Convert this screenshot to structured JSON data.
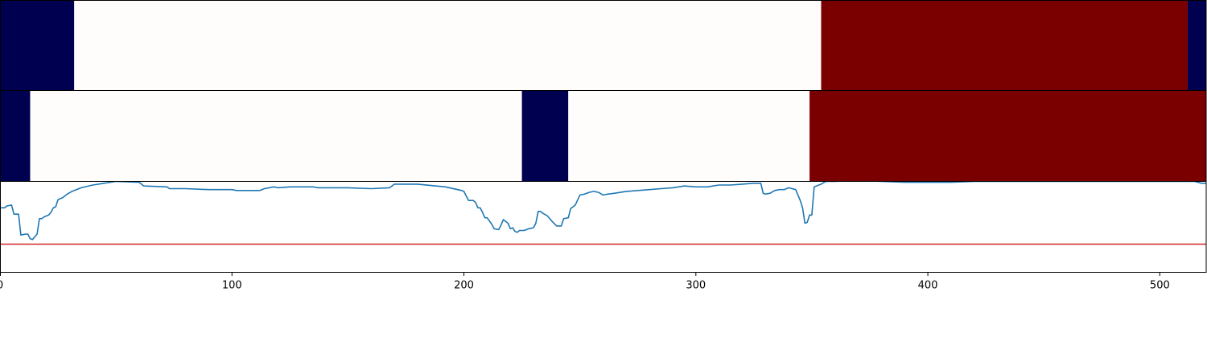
{
  "chart_data": [
    {
      "type": "heatmap",
      "panel": "top-band",
      "xlim": [
        0,
        520
      ],
      "segments": [
        {
          "start": 0,
          "end": 32,
          "color": "#000050"
        },
        {
          "start": 32,
          "end": 354,
          "color": "#fffcfc"
        },
        {
          "start": 354,
          "end": 512,
          "color": "#7a0000"
        },
        {
          "start": 512,
          "end": 520,
          "color": "#000050"
        }
      ]
    },
    {
      "type": "heatmap",
      "panel": "middle-band",
      "xlim": [
        0,
        520
      ],
      "segments": [
        {
          "start": 0,
          "end": 13,
          "color": "#000050"
        },
        {
          "start": 13,
          "end": 225,
          "color": "#fffcfc"
        },
        {
          "start": 225,
          "end": 245,
          "color": "#000050"
        },
        {
          "start": 245,
          "end": 349,
          "color": "#fffcfc"
        },
        {
          "start": 349,
          "end": 520,
          "color": "#7a0000"
        }
      ]
    },
    {
      "type": "line",
      "panel": "signal",
      "xlim": [
        0,
        520
      ],
      "ylim": [
        0,
        1
      ],
      "threshold": 0.31,
      "threshold_color": "#d62728",
      "line_color": "#1f77b4",
      "x_ticks": [
        "0",
        "100",
        "200",
        "300",
        "400",
        "500"
      ],
      "x_tick_values": [
        0,
        100,
        200,
        300,
        400,
        500
      ],
      "x": [
        0,
        2,
        3,
        5,
        6,
        8,
        9,
        11,
        12,
        13,
        14,
        15,
        16,
        17,
        18,
        19,
        21,
        22,
        23,
        24,
        25,
        27,
        29,
        31,
        33,
        35,
        40,
        50,
        60,
        62,
        72,
        73,
        80,
        90,
        100,
        102,
        112,
        114,
        118,
        120,
        125,
        130,
        135,
        137,
        150,
        160,
        168,
        170,
        180,
        188,
        192,
        199,
        200,
        201,
        202,
        204,
        205,
        206,
        207,
        208,
        209,
        210,
        212,
        213,
        215,
        216,
        217,
        219,
        220,
        221,
        222,
        223,
        224,
        226,
        228,
        230,
        231,
        232,
        233,
        234,
        236,
        238,
        240,
        241,
        242,
        243,
        245,
        246,
        247,
        248,
        250,
        252,
        254,
        256,
        258,
        260,
        262,
        265,
        270,
        280,
        285,
        290,
        295,
        300,
        305,
        310,
        315,
        320,
        325,
        328,
        329,
        330,
        332,
        334,
        336,
        338,
        340,
        343,
        345,
        346,
        347,
        348,
        349,
        350,
        351,
        352,
        354,
        356,
        358,
        360,
        370,
        380,
        390,
        400,
        410,
        420,
        430,
        440,
        450,
        460,
        470,
        480,
        490,
        500,
        505,
        510,
        515,
        518,
        519,
        520
      ],
      "y": [
        0.71,
        0.71,
        0.73,
        0.74,
        0.64,
        0.64,
        0.41,
        0.42,
        0.42,
        0.37,
        0.36,
        0.39,
        0.42,
        0.59,
        0.59,
        0.61,
        0.63,
        0.66,
        0.71,
        0.72,
        0.8,
        0.82,
        0.86,
        0.89,
        0.91,
        0.93,
        0.96,
        1.0,
        0.99,
        0.95,
        0.94,
        0.92,
        0.92,
        0.91,
        0.91,
        0.9,
        0.9,
        0.92,
        0.94,
        0.93,
        0.94,
        0.94,
        0.94,
        0.93,
        0.93,
        0.92,
        0.93,
        0.97,
        0.97,
        0.95,
        0.94,
        0.9,
        0.89,
        0.84,
        0.79,
        0.79,
        0.77,
        0.71,
        0.71,
        0.66,
        0.6,
        0.6,
        0.53,
        0.48,
        0.47,
        0.52,
        0.58,
        0.54,
        0.48,
        0.49,
        0.45,
        0.44,
        0.46,
        0.46,
        0.48,
        0.49,
        0.54,
        0.67,
        0.67,
        0.65,
        0.62,
        0.56,
        0.51,
        0.51,
        0.51,
        0.59,
        0.6,
        0.7,
        0.72,
        0.74,
        0.85,
        0.86,
        0.88,
        0.89,
        0.88,
        0.85,
        0.86,
        0.87,
        0.89,
        0.91,
        0.92,
        0.93,
        0.95,
        0.94,
        0.94,
        0.96,
        0.96,
        0.97,
        0.98,
        0.98,
        0.87,
        0.86,
        0.87,
        0.9,
        0.91,
        0.91,
        0.93,
        0.91,
        0.79,
        0.71,
        0.54,
        0.55,
        0.63,
        0.63,
        0.94,
        0.95,
        0.97,
        1.0,
        1.0,
        1.0,
        1.01,
        1.0,
        0.99,
        0.99,
        0.99,
        1.0,
        1.0,
        1.0,
        1.0,
        1.0,
        1.0,
        1.0,
        1.0,
        1.0,
        1.0,
        1.0,
        1.0,
        0.98,
        0.98,
        0.98
      ]
    }
  ]
}
